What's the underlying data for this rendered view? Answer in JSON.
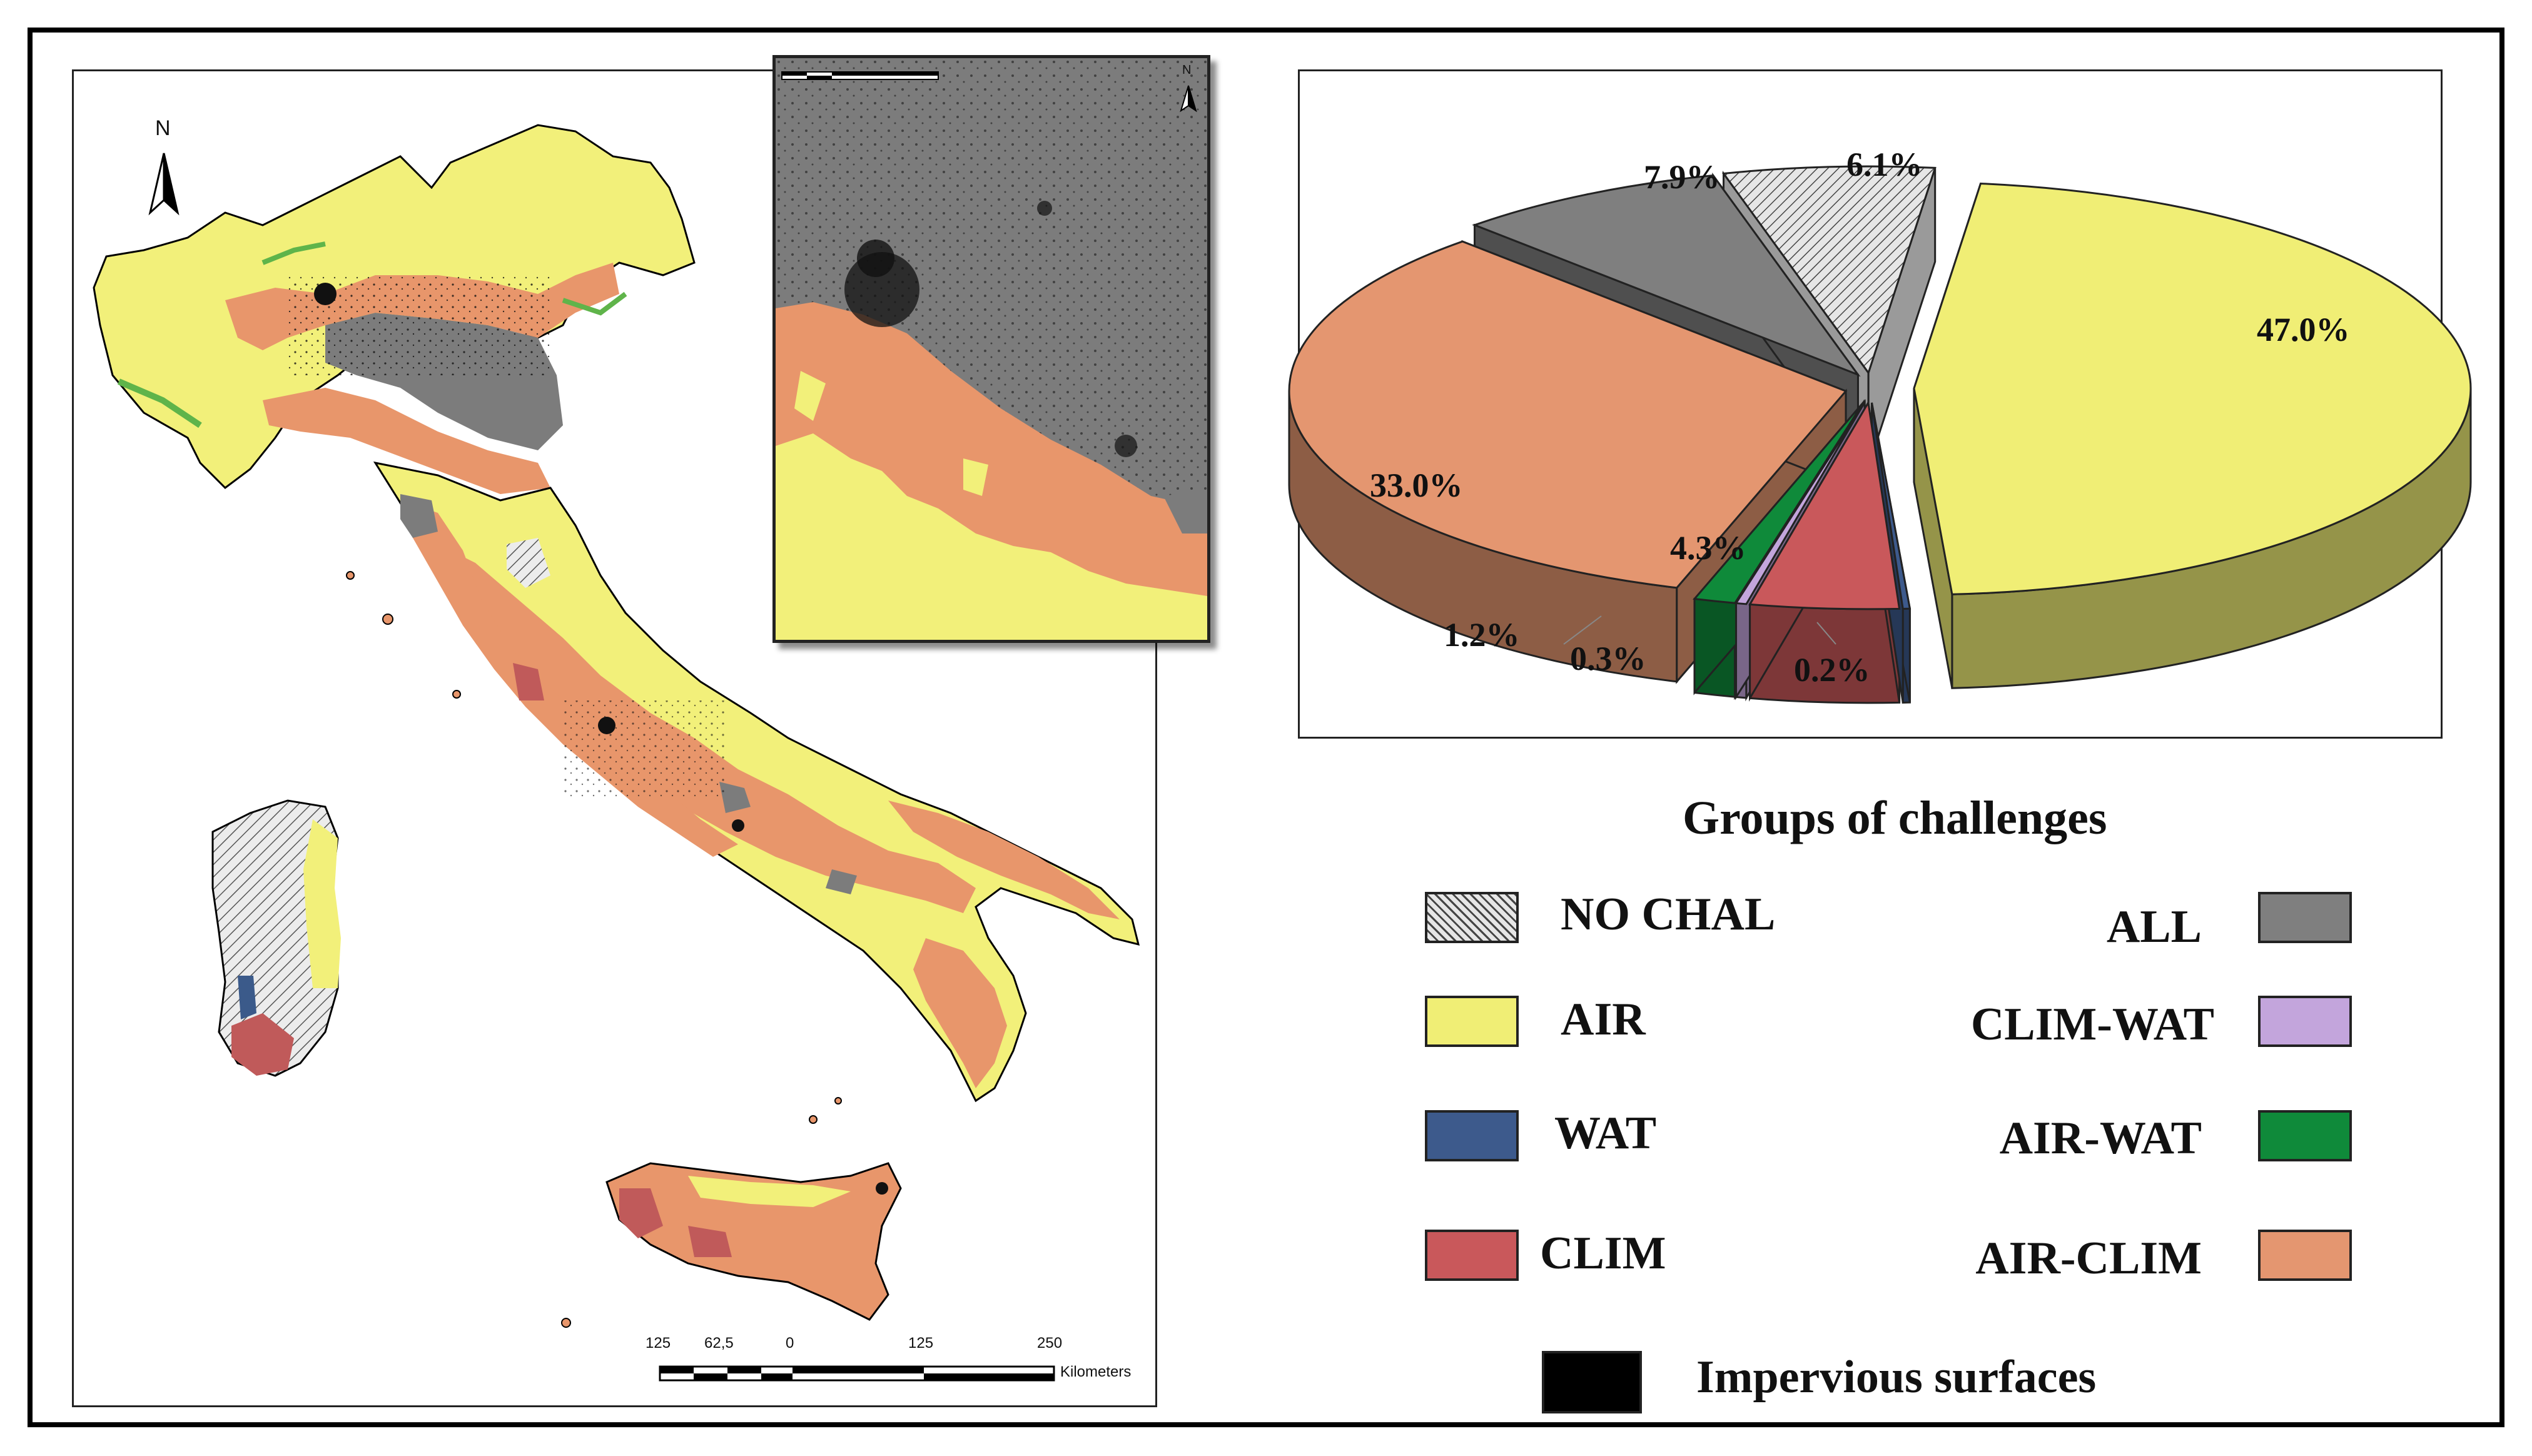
{
  "map": {
    "north_label": "N",
    "scale_bar": {
      "ticks": [
        "125",
        "62,5",
        "0",
        "125",
        "250"
      ],
      "unit": "Kilometers"
    },
    "inset_north_label": "N",
    "colors": {
      "air": "#f2f07a",
      "air_clim": "#e8966b",
      "all": "#7c7c7c",
      "impervious": "#000000",
      "clim": "#c05a5a",
      "air_wat": "#5fb44a",
      "wat": "#3b5a8a",
      "no_chal": "#e6e6e6"
    }
  },
  "chart_data": {
    "type": "pie",
    "style": "3d-exploded",
    "slices": [
      {
        "label": "AIR",
        "value": 47.0,
        "display": "47.0%",
        "color": "#f0ee75"
      },
      {
        "label": "WAT",
        "value": 0.2,
        "display": "0.2%",
        "color": "#3d5a8c"
      },
      {
        "label": "CLIM",
        "value": 4.3,
        "display": "4.3%",
        "color": "#c9585b"
      },
      {
        "label": "CLIM-WAT",
        "value": 0.3,
        "display": "0.3%",
        "color": "#c3a5dc"
      },
      {
        "label": "AIR-WAT",
        "value": 1.2,
        "display": "1.2%",
        "color": "#0f8a3a"
      },
      {
        "label": "AIR-CLIM",
        "value": 33.0,
        "display": "33.0%",
        "color": "#e49670"
      },
      {
        "label": "ALL",
        "value": 7.9,
        "display": "7.9%",
        "color": "#7f7f7f"
      },
      {
        "label": "NO CHAL",
        "value": 6.1,
        "display": "6.1%",
        "color": "#dcdcdc"
      }
    ]
  },
  "legend": {
    "title": "Groups of challenges",
    "left": [
      {
        "label": "NO CHAL",
        "color": "#dcdcdc",
        "pattern": "hatch"
      },
      {
        "label": "AIR",
        "color": "#f0ee75"
      },
      {
        "label": "WAT",
        "color": "#3d5a8c"
      },
      {
        "label": "CLIM",
        "color": "#c9585b"
      }
    ],
    "right": [
      {
        "label": "ALL",
        "color": "#7f7f7f"
      },
      {
        "label": "CLIM-WAT",
        "color": "#c3a5dc"
      },
      {
        "label": "AIR-WAT",
        "color": "#0f8a3a"
      },
      {
        "label": "AIR-CLIM",
        "color": "#e49670"
      }
    ],
    "impervious": {
      "label": "Impervious surfaces",
      "color": "#000000"
    }
  }
}
